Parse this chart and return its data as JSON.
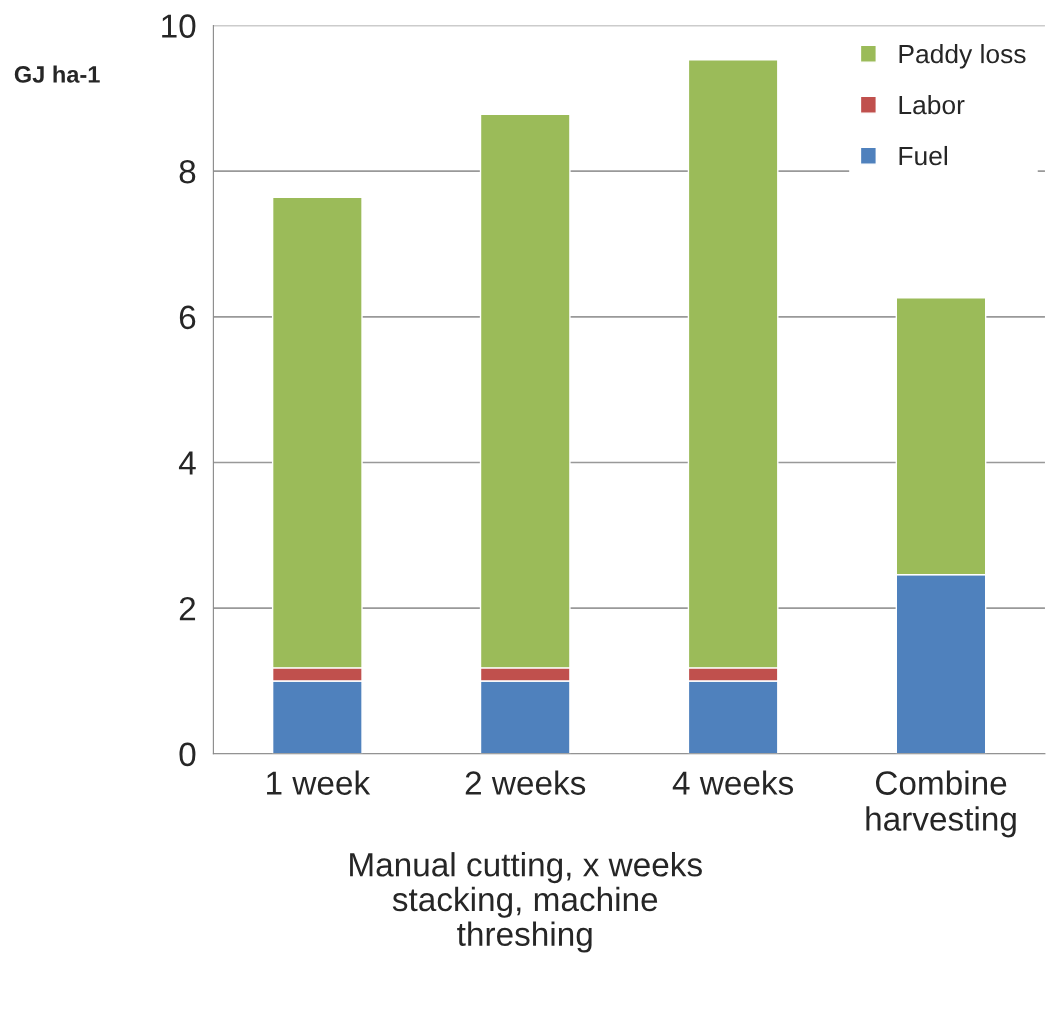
{
  "chart_data": {
    "type": "bar",
    "stacked": true,
    "categories": [
      "1 week",
      "2 weeks",
      "4 weeks",
      "Combine\nharvesting"
    ],
    "xlabel": "Manual cutting, x weeks\nstacking, machine\nthreshing",
    "ylabel": "GJ ha-1",
    "series": [
      {
        "name": "Fuel",
        "color": "#4f81bd",
        "values": [
          1.0,
          1.0,
          1.0,
          2.46
        ]
      },
      {
        "name": "Labor",
        "color": "#c0504d",
        "values": [
          0.18,
          0.18,
          0.18,
          0
        ]
      },
      {
        "name": "Paddy loss",
        "color": "#9bbb59",
        "values": [
          6.46,
          7.6,
          8.35,
          3.8
        ]
      }
    ],
    "ylim": [
      0,
      10
    ],
    "yticks": [
      0,
      2,
      4,
      6,
      8,
      10
    ],
    "grid": "y",
    "legend": "top right"
  }
}
